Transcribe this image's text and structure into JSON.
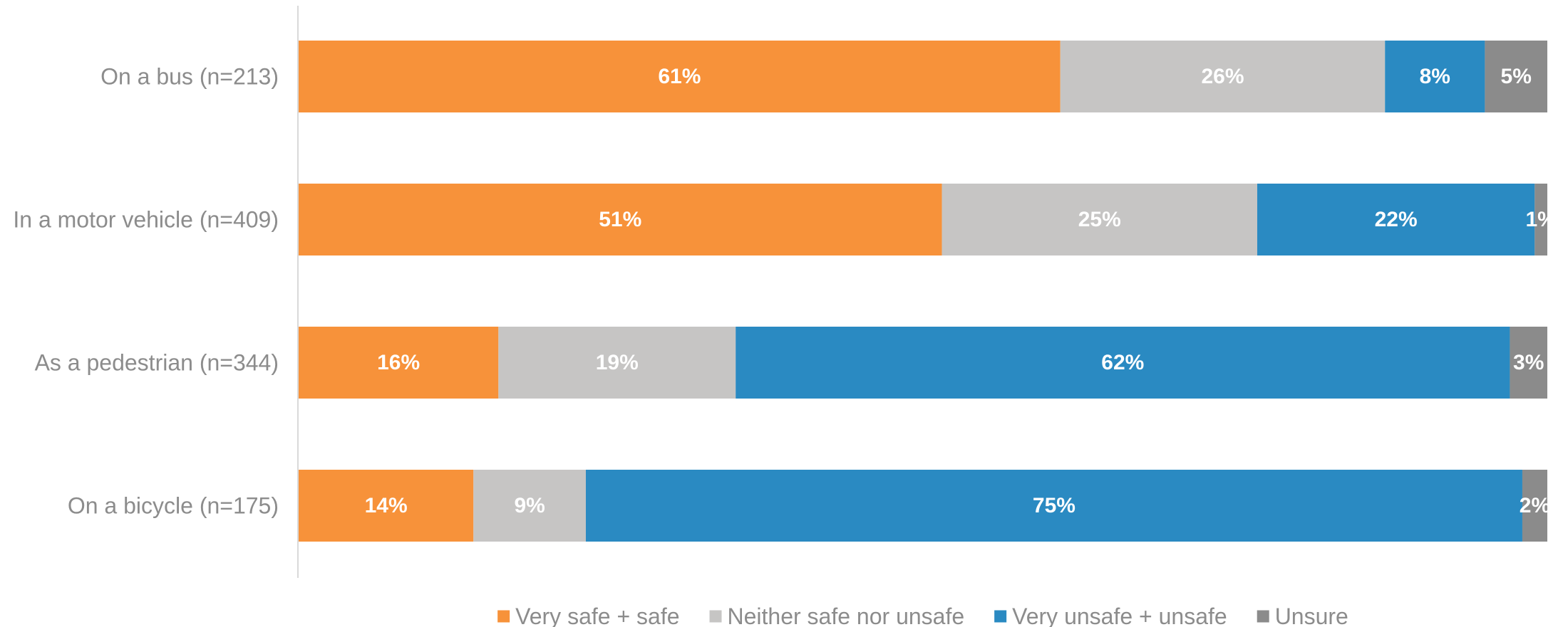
{
  "chart_data": {
    "type": "bar",
    "orientation": "horizontal",
    "stacked": true,
    "percent": true,
    "categories": [
      "On a bus (n=213)",
      "In a motor vehicle (n=409)",
      "As a pedestrian (n=344)",
      "On a bicycle (n=175)"
    ],
    "series": [
      {
        "name": "Very safe + safe",
        "color": "#f7923a",
        "values": [
          61,
          51,
          16,
          14
        ]
      },
      {
        "name": "Neither safe nor unsafe",
        "color": "#c6c5c4",
        "values": [
          26,
          25,
          19,
          9
        ]
      },
      {
        "name": "Very unsafe + unsafe",
        "color": "#2a8ac2",
        "values": [
          8,
          22,
          62,
          75
        ]
      },
      {
        "name": "Unsure",
        "color": "#8b8b8b",
        "values": [
          5,
          1,
          3,
          2
        ]
      }
    ],
    "data_labels": [
      [
        "61%",
        "26%",
        "8%",
        "5%"
      ],
      [
        "51%",
        "25%",
        "22%",
        "1%"
      ],
      [
        "16%",
        "19%",
        "62%",
        "3%"
      ],
      [
        "14%",
        "9%",
        "75%",
        "2%"
      ]
    ],
    "legend_position": "bottom",
    "grid": false,
    "title": "",
    "xlabel": "",
    "ylabel": ""
  }
}
